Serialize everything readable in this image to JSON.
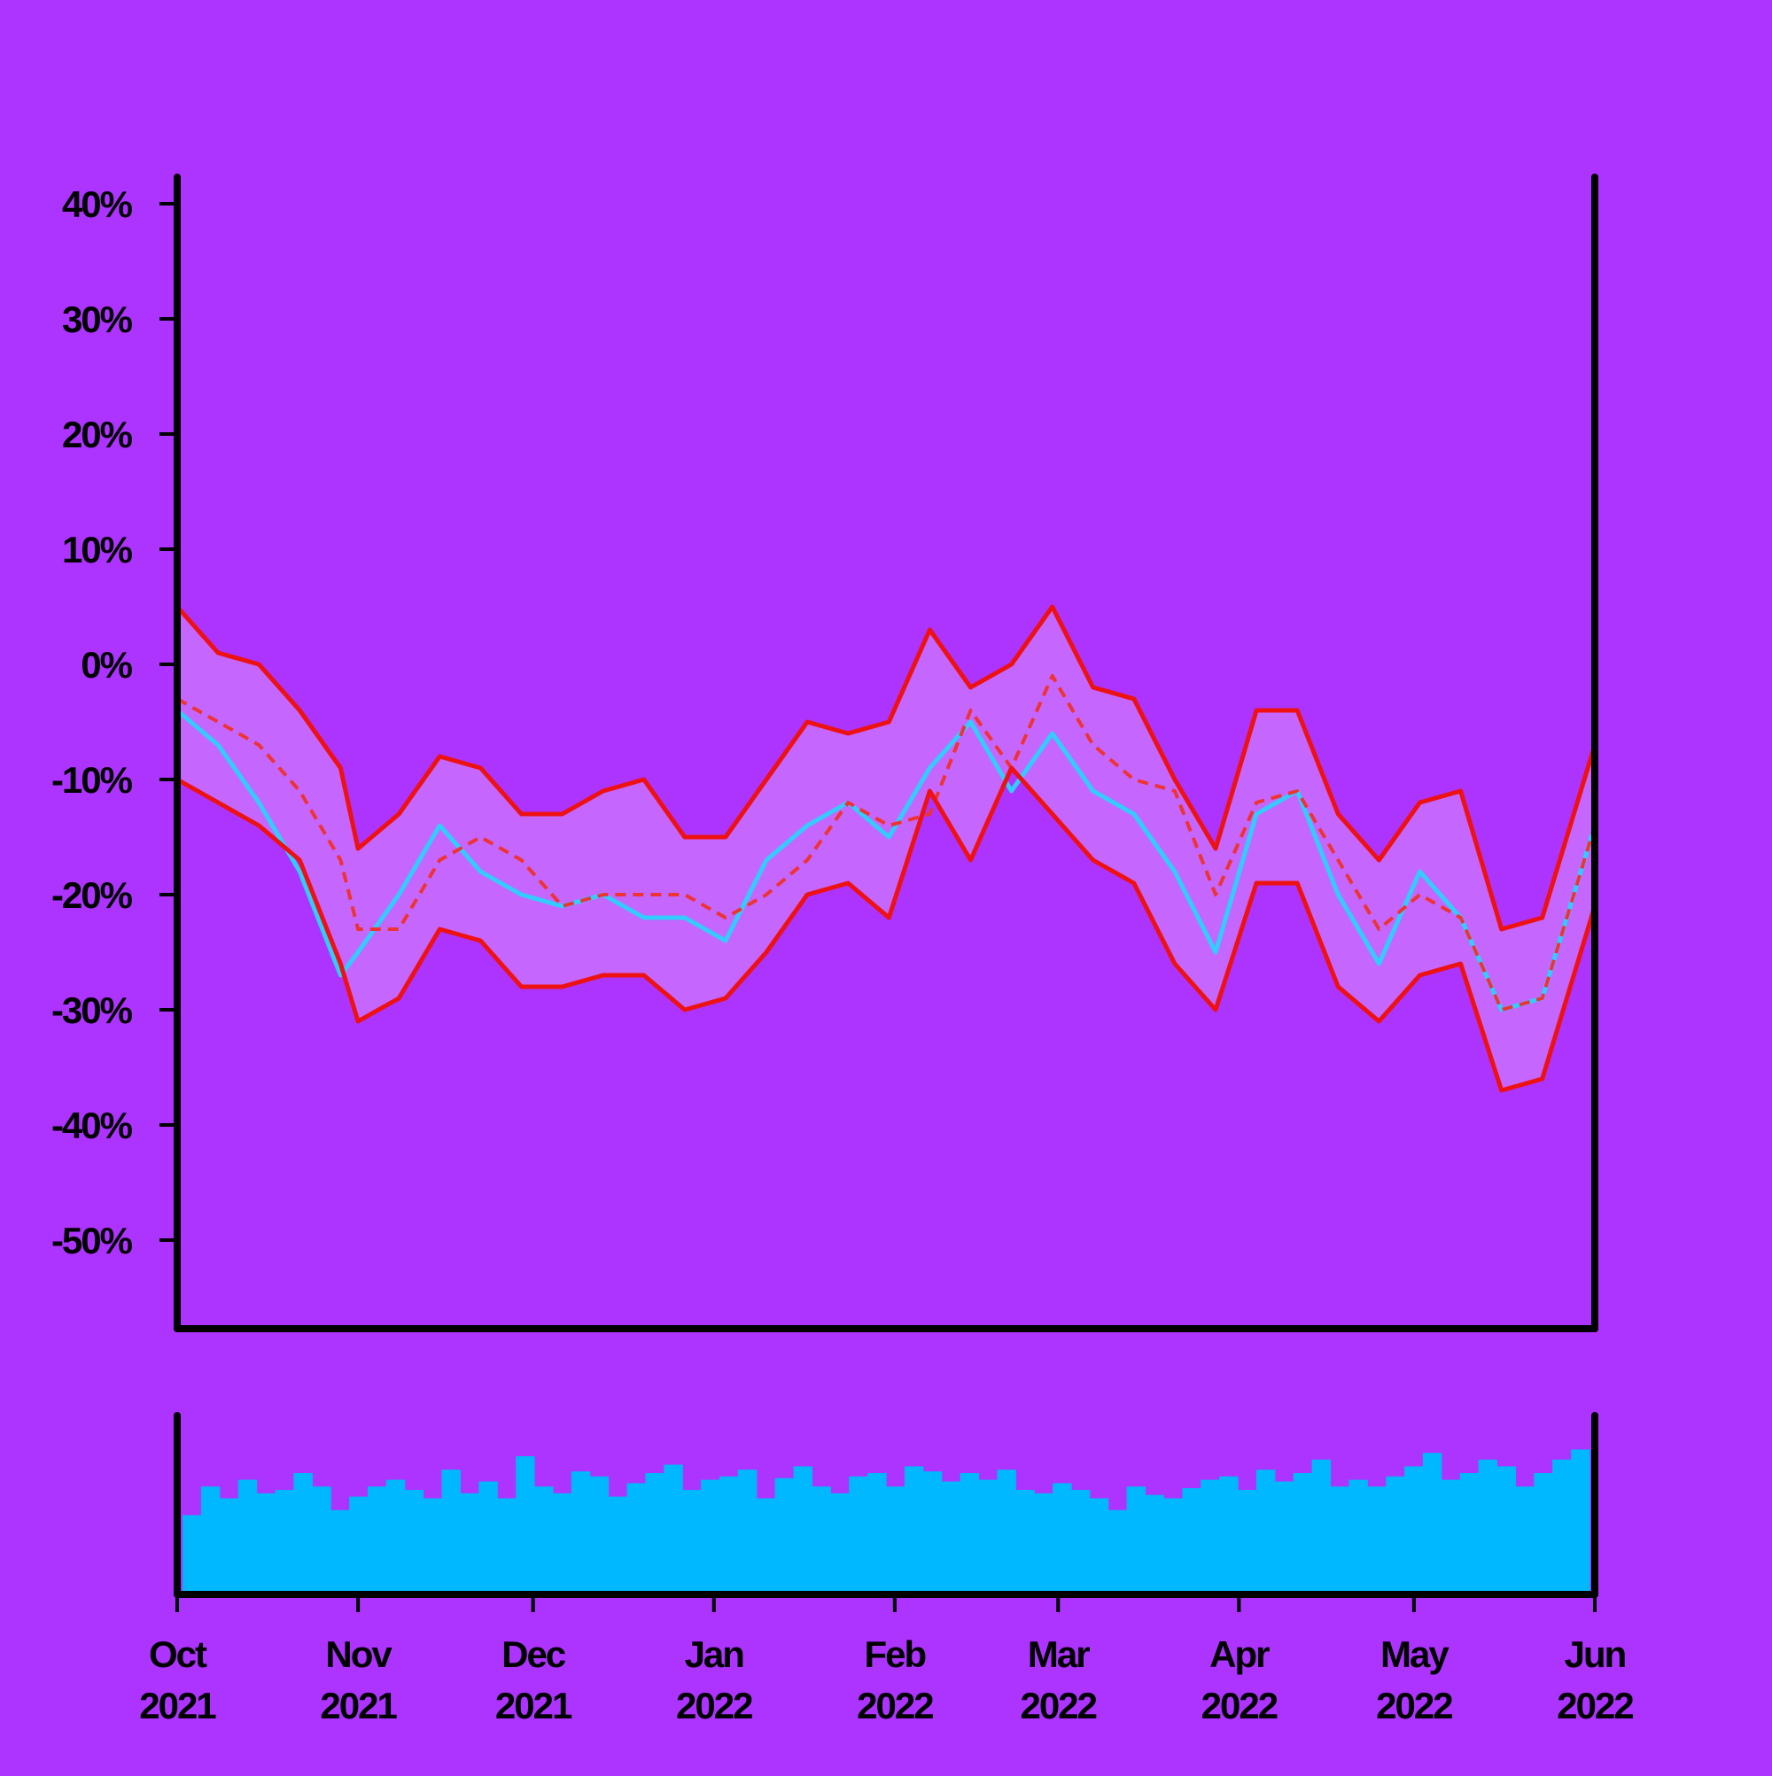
{
  "chart_data": [
    {
      "type": "line",
      "title": "",
      "xlabel": "",
      "ylabel": "",
      "ylim": [
        -57,
        42
      ],
      "y_tick_values": [
        40,
        30,
        20,
        10,
        0,
        -10,
        -20,
        -30,
        -40,
        -50
      ],
      "y_tick_labels": [
        "40%",
        "30%",
        "20%",
        "10%",
        "0%",
        "-10%",
        "-20%",
        "-30%",
        "-40%",
        "-50%"
      ],
      "x_range": [
        "2021-10-01",
        "2022-06-01"
      ],
      "x_ticks": [
        {
          "date": "2021-10-01",
          "month": "Oct",
          "year": "2021"
        },
        {
          "date": "2021-11-01",
          "month": "Nov",
          "year": "2021"
        },
        {
          "date": "2021-12-01",
          "month": "Dec",
          "year": "2021"
        },
        {
          "date": "2022-01-01",
          "month": "Jan",
          "year": "2022"
        },
        {
          "date": "2022-02-01",
          "month": "Feb",
          "year": "2022"
        },
        {
          "date": "2022-03-01",
          "month": "Mar",
          "year": "2022"
        },
        {
          "date": "2022-04-01",
          "month": "Apr",
          "year": "2022"
        },
        {
          "date": "2022-05-01",
          "month": "May",
          "year": "2022"
        },
        {
          "date": "2022-06-01",
          "month": "Jun",
          "year": "2022"
        }
      ],
      "grid": false,
      "colors": {
        "price": "#33ccff",
        "band": "#ee1111",
        "middle": "#ee3333",
        "band_fill": "#c566ff"
      },
      "series": [
        {
          "role": "price",
          "x": [
            "2021-10-01",
            "2021-10-08",
            "2021-10-15",
            "2021-10-22",
            "2021-10-29",
            "2021-11-01",
            "2021-11-08",
            "2021-11-15",
            "2021-11-22",
            "2021-11-29",
            "2021-12-06",
            "2021-12-13",
            "2021-12-20",
            "2021-12-27",
            "2022-01-03",
            "2022-01-10",
            "2022-01-17",
            "2022-01-24",
            "2022-01-31",
            "2022-02-07",
            "2022-02-14",
            "2022-02-21",
            "2022-02-28",
            "2022-03-07",
            "2022-03-14",
            "2022-03-21",
            "2022-03-28",
            "2022-04-04",
            "2022-04-11",
            "2022-04-18",
            "2022-04-25",
            "2022-05-02",
            "2022-05-09",
            "2022-05-16",
            "2022-05-23",
            "2022-06-01"
          ],
          "y": [
            -4,
            -7,
            -12,
            -18,
            -27,
            -25,
            -20,
            -14,
            -18,
            -20,
            -21,
            -20,
            -22,
            -22,
            -24,
            -17,
            -14,
            -12,
            -15,
            -9,
            -5,
            -11,
            -6,
            -11,
            -13,
            -18,
            -25,
            -13,
            -11,
            -20,
            -26,
            -18,
            -22,
            -30,
            -29,
            -14
          ]
        },
        {
          "role": "middle",
          "x": [
            "2021-10-01",
            "2021-10-08",
            "2021-10-15",
            "2021-10-22",
            "2021-10-29",
            "2021-11-01",
            "2021-11-08",
            "2021-11-15",
            "2021-11-22",
            "2021-11-29",
            "2021-12-06",
            "2021-12-13",
            "2021-12-20",
            "2021-12-27",
            "2022-01-03",
            "2022-01-10",
            "2022-01-17",
            "2022-01-24",
            "2022-01-31",
            "2022-02-07",
            "2022-02-14",
            "2022-02-21",
            "2022-02-28",
            "2022-03-07",
            "2022-03-14",
            "2022-03-21",
            "2022-03-28",
            "2022-04-04",
            "2022-04-11",
            "2022-04-18",
            "2022-04-25",
            "2022-05-02",
            "2022-05-09",
            "2022-05-16",
            "2022-05-23",
            "2022-06-01"
          ],
          "y": [
            -3,
            -5,
            -7,
            -11,
            -17,
            -23,
            -23,
            -17,
            -15,
            -17,
            -21,
            -20,
            -20,
            -20,
            -22,
            -20,
            -17,
            -12,
            -14,
            -13,
            -4,
            -9,
            -1,
            -7,
            -10,
            -11,
            -20,
            -12,
            -11,
            -17,
            -23,
            -20,
            -22,
            -30,
            -29,
            -14
          ]
        },
        {
          "role": "upper",
          "x": [
            "2021-10-01",
            "2021-10-08",
            "2021-10-15",
            "2021-10-22",
            "2021-10-29",
            "2021-11-01",
            "2021-11-08",
            "2021-11-15",
            "2021-11-22",
            "2021-11-29",
            "2021-12-06",
            "2021-12-13",
            "2021-12-20",
            "2021-12-27",
            "2022-01-03",
            "2022-01-10",
            "2022-01-17",
            "2022-01-24",
            "2022-01-31",
            "2022-02-07",
            "2022-02-14",
            "2022-02-21",
            "2022-02-28",
            "2022-03-07",
            "2022-03-14",
            "2022-03-21",
            "2022-03-28",
            "2022-04-04",
            "2022-04-11",
            "2022-04-18",
            "2022-04-25",
            "2022-05-02",
            "2022-05-09",
            "2022-05-16",
            "2022-05-23",
            "2022-06-01"
          ],
          "y": [
            5,
            1,
            0,
            -4,
            -9,
            -16,
            -13,
            -8,
            -9,
            -13,
            -13,
            -11,
            -10,
            -15,
            -15,
            -10,
            -5,
            -6,
            -5,
            3,
            -2,
            0,
            5,
            -2,
            -3,
            -10,
            -16,
            -4,
            -4,
            -13,
            -17,
            -12,
            -11,
            -23,
            -22,
            -7
          ]
        },
        {
          "role": "lower",
          "x": [
            "2021-10-01",
            "2021-10-08",
            "2021-10-15",
            "2021-10-22",
            "2021-10-29",
            "2021-11-01",
            "2021-11-08",
            "2021-11-15",
            "2021-11-22",
            "2021-11-29",
            "2021-12-06",
            "2021-12-13",
            "2021-12-20",
            "2021-12-27",
            "2022-01-03",
            "2022-01-10",
            "2022-01-17",
            "2022-01-24",
            "2022-01-31",
            "2022-02-07",
            "2022-02-14",
            "2022-02-21",
            "2022-02-28",
            "2022-03-07",
            "2022-03-14",
            "2022-03-21",
            "2022-03-28",
            "2022-04-04",
            "2022-04-11",
            "2022-04-18",
            "2022-04-25",
            "2022-05-02",
            "2022-05-09",
            "2022-05-16",
            "2022-05-23",
            "2022-06-01"
          ],
          "y": [
            -10,
            -12,
            -14,
            -17,
            -26,
            -31,
            -29,
            -23,
            -24,
            -28,
            -28,
            -27,
            -27,
            -30,
            -29,
            -25,
            -20,
            -19,
            -22,
            -11,
            -17,
            -9,
            -13,
            -17,
            -19,
            -26,
            -30,
            -19,
            -19,
            -28,
            -31,
            -27,
            -26,
            -37,
            -36,
            -21
          ]
        }
      ]
    },
    {
      "type": "bar",
      "title": "",
      "role": "volume",
      "color": "#00b8ff",
      "ylim": [
        0,
        1
      ],
      "x_range": [
        "2021-10-01",
        "2022-06-01"
      ],
      "values": [
        0.45,
        0.62,
        0.55,
        0.66,
        0.58,
        0.6,
        0.7,
        0.62,
        0.48,
        0.56,
        0.62,
        0.66,
        0.6,
        0.55,
        0.72,
        0.58,
        0.65,
        0.55,
        0.8,
        0.62,
        0.58,
        0.71,
        0.68,
        0.56,
        0.64,
        0.7,
        0.75,
        0.6,
        0.66,
        0.68,
        0.72,
        0.55,
        0.67,
        0.74,
        0.62,
        0.58,
        0.68,
        0.7,
        0.62,
        0.74,
        0.71,
        0.65,
        0.7,
        0.66,
        0.72,
        0.6,
        0.58,
        0.64,
        0.6,
        0.55,
        0.48,
        0.62,
        0.57,
        0.55,
        0.61,
        0.66,
        0.68,
        0.6,
        0.72,
        0.65,
        0.7,
        0.78,
        0.62,
        0.66,
        0.62,
        0.68,
        0.74,
        0.82,
        0.66,
        0.7,
        0.78,
        0.74,
        0.62,
        0.7,
        0.78,
        0.84
      ]
    }
  ]
}
